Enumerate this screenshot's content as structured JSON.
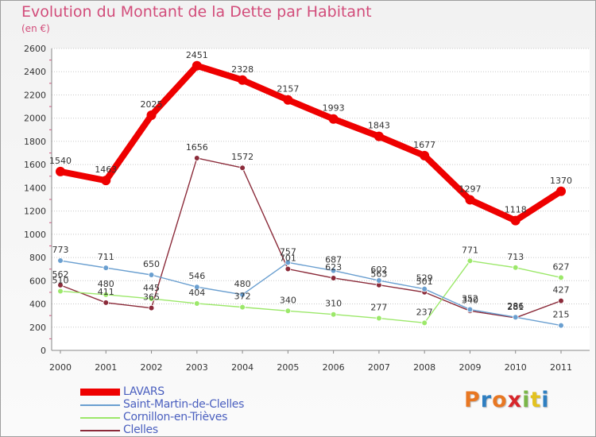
{
  "header": {
    "title": "Evolution du Montant de la Dette par Habitant",
    "subtitle": "(en €)"
  },
  "logo": {
    "text": "Proxiti",
    "colors": [
      "#e87722",
      "#2f7fc1",
      "#e87722",
      "#d7262b",
      "#7ab648",
      "#e3c21f",
      "#2f7fc1"
    ]
  },
  "chart_data": {
    "type": "line",
    "title": "Evolution du Montant de la Dette par Habitant",
    "subtitle": "(en €)",
    "xlabel": "",
    "ylabel": "",
    "x": [
      "2000",
      "2001",
      "2002",
      "2003",
      "2004",
      "2005",
      "2006",
      "2007",
      "2008",
      "2009",
      "2010",
      "2011"
    ],
    "ylim": [
      0,
      2600
    ],
    "yticks": [
      0,
      200,
      400,
      600,
      800,
      1000,
      1200,
      1400,
      1600,
      1800,
      2000,
      2200,
      2400,
      2600
    ],
    "grid": "horizontal dotted",
    "legend": "bottom-left",
    "series": [
      {
        "name": "LAVARS",
        "color": "#ee0000",
        "values": [
          1540,
          1463,
          2025,
          2451,
          2328,
          2157,
          1993,
          1843,
          1677,
          1297,
          1118,
          1370
        ],
        "labels": [
          "1540",
          "1463",
          "2025",
          "2451",
          "2328",
          "2157",
          "1993",
          "1843",
          "1677",
          "1297",
          "1118",
          "1370"
        ]
      },
      {
        "name": "Saint-Martin-de-Clelles",
        "color": "#6a9fd0",
        "values": [
          773,
          711,
          650,
          546,
          480,
          757,
          687,
          602,
          529,
          352,
          286,
          215
        ],
        "labels": [
          "773",
          "711",
          "650",
          "546",
          "480",
          "757",
          "687",
          "602",
          "529",
          "352",
          "286",
          "215"
        ]
      },
      {
        "name": "Cornillon-en-Trièves",
        "color": "#9ce86a",
        "values": [
          510,
          480,
          445,
          404,
          372,
          340,
          310,
          277,
          237,
          771,
          713,
          627
        ],
        "labels": [
          "510",
          "480",
          "445",
          "404",
          "372",
          "340",
          "310",
          "277",
          "237",
          "771",
          "713",
          "627"
        ]
      },
      {
        "name": "Clelles",
        "color": "#8b2b3a",
        "values": [
          562,
          411,
          365,
          1656,
          1572,
          701,
          623,
          563,
          501,
          340,
          281,
          427
        ],
        "labels": [
          "562",
          "411",
          "365",
          "1656",
          "1572",
          "701",
          "623",
          "563",
          "501",
          "340",
          "281",
          "427"
        ]
      }
    ]
  }
}
